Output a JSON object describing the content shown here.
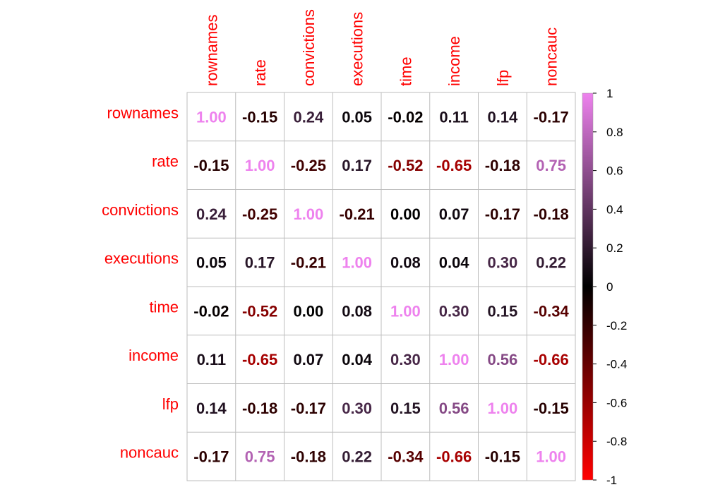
{
  "colors": {
    "label": "#FF0000",
    "grid": "#BEBEBE",
    "scale_neg1": "#FF0000",
    "scale_zero": "#000000",
    "scale_pos1": "#EE82EE"
  },
  "chart_data": {
    "type": "heatmap",
    "title": "",
    "variables": [
      "rownames",
      "rate",
      "convictions",
      "executions",
      "time",
      "income",
      "lfp",
      "noncauc"
    ],
    "matrix": [
      [
        "1.00",
        "-0.15",
        "0.24",
        "0.05",
        "-0.02",
        "0.11",
        "0.14",
        "-0.17"
      ],
      [
        "-0.15",
        "1.00",
        "-0.25",
        "0.17",
        "-0.52",
        "-0.65",
        "-0.18",
        "0.75"
      ],
      [
        "0.24",
        "-0.25",
        "1.00",
        "-0.21",
        "0.00",
        "0.07",
        "-0.17",
        "-0.18"
      ],
      [
        "0.05",
        "0.17",
        "-0.21",
        "1.00",
        "0.08",
        "0.04",
        "0.30",
        "0.22"
      ],
      [
        "-0.02",
        "-0.52",
        "0.00",
        "0.08",
        "1.00",
        "0.30",
        "0.15",
        "-0.34"
      ],
      [
        "0.11",
        "-0.65",
        "0.07",
        "0.04",
        "0.30",
        "1.00",
        "0.56",
        "-0.66"
      ],
      [
        "0.14",
        "-0.18",
        "-0.17",
        "0.30",
        "0.15",
        "0.56",
        "1.00",
        "-0.15"
      ],
      [
        "-0.17",
        "0.75",
        "-0.18",
        "0.22",
        "-0.34",
        "-0.66",
        "-0.15",
        "1.00"
      ]
    ],
    "color_scale": {
      "range": [
        -1,
        1
      ],
      "ticks": [
        "1",
        "0.8",
        "0.6",
        "0.4",
        "0.2",
        "0",
        "-0.2",
        "-0.4",
        "-0.6",
        "-0.8",
        "-1"
      ]
    },
    "legend": "right"
  }
}
